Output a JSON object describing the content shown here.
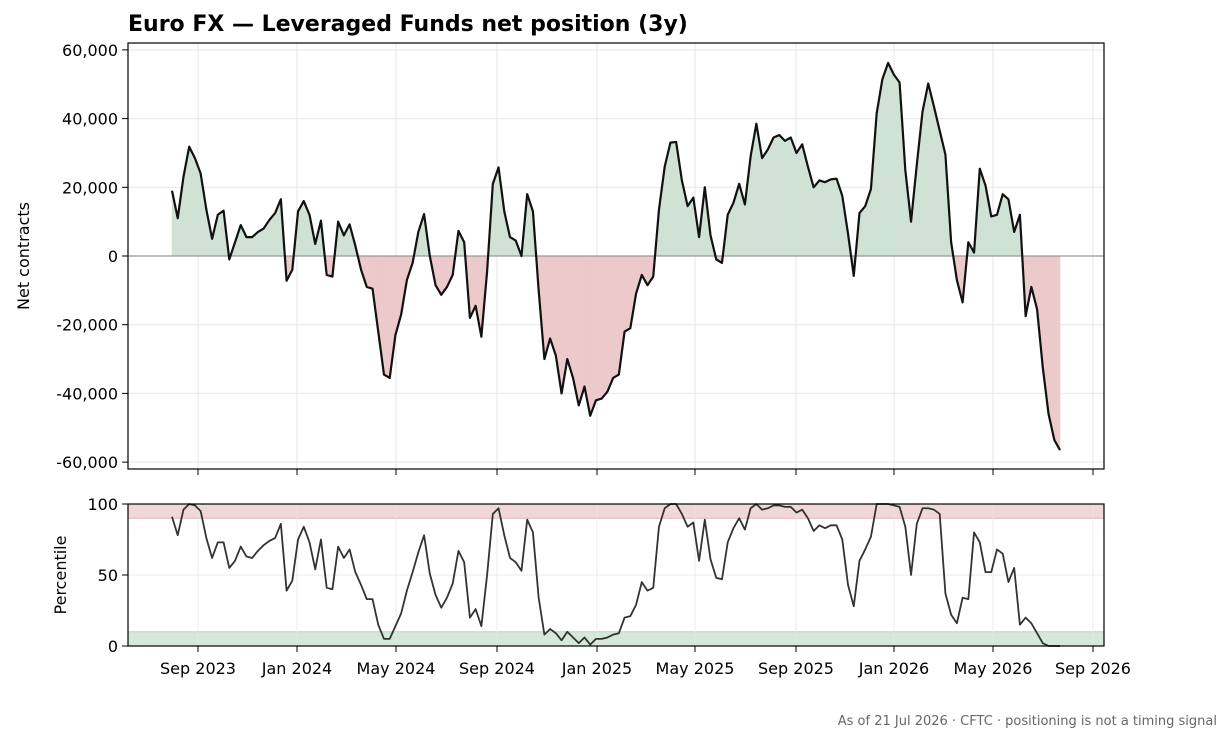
{
  "chart_data": [
    {
      "type": "area",
      "title": "Euro FX — Leveraged Funds net position (3y)",
      "ylabel": "Net contracts",
      "ylim": [
        -62000,
        62000
      ],
      "yticks": [
        -60000,
        -40000,
        -20000,
        0,
        20000,
        40000,
        60000
      ],
      "ytick_labels": [
        "-60,000",
        "-40,000",
        "-20,000",
        "0",
        "20,000",
        "40,000",
        "60,000"
      ],
      "grid": true,
      "colors": {
        "positive_fill": "#cfe2d5",
        "negative_fill": "#ecc9cb",
        "line": "#111111",
        "zero_line": "#999999"
      },
      "series": [
        {
          "values": [
            19000,
            11000,
            23000,
            31800,
            28500,
            24000,
            13500,
            5000,
            12000,
            13200,
            -1000,
            4000,
            9000,
            5500,
            5500,
            7000,
            8000,
            10500,
            12500,
            16500,
            -7200,
            -4000,
            13000,
            16000,
            12000,
            3500,
            10300,
            -5500,
            -6000,
            10000,
            6000,
            9200,
            3000,
            -4000,
            -9000,
            -9500,
            -22000,
            -34500,
            -35500,
            -23000,
            -17000,
            -7000,
            -2000,
            7000,
            12200,
            0,
            -8500,
            -11300,
            -9000,
            -5500,
            7300,
            4000,
            -18000,
            -14500,
            -23500,
            -4500,
            21000,
            25800,
            13000,
            5500,
            4500,
            0,
            18000,
            13000,
            -10000,
            -30000,
            -24000,
            -29000,
            -40000,
            -30000,
            -35500,
            -43500,
            -38000,
            -46500,
            -42000,
            -41500,
            -39500,
            -35500,
            -34500,
            -22000,
            -21000,
            -11000,
            -5500,
            -8500,
            -6000,
            13500,
            26000,
            33000,
            33200,
            22000,
            14500,
            17000,
            5500,
            20000,
            6000,
            -1000,
            -2000,
            12000,
            15500,
            21000,
            15000,
            29000,
            38500,
            28500,
            31000,
            34500,
            35200,
            33500,
            34500,
            30000,
            32500,
            26000,
            20000,
            22000,
            21500,
            22300,
            22500,
            17500,
            6500,
            -5800,
            12500,
            14500,
            19500,
            41500,
            51500,
            56200,
            52800,
            50500,
            25000,
            10000,
            26500,
            42000,
            50200,
            43500,
            36500,
            29500,
            4000,
            -7000,
            -13500,
            4000,
            1000,
            25400,
            20500,
            11500,
            12000,
            18000,
            16500,
            7000,
            12000,
            -17500,
            -9000,
            -15500,
            -32500,
            -46000,
            -53500,
            -56500
          ]
        }
      ]
    },
    {
      "type": "line",
      "ylabel": "Percentile",
      "ylim": [
        0,
        100
      ],
      "yticks": [
        0,
        50,
        100
      ],
      "ytick_labels": [
        "0",
        "50",
        "100"
      ],
      "bands": [
        {
          "from": 90,
          "to": 100,
          "color": "#f0d8da"
        },
        {
          "from": 0,
          "to": 10,
          "color": "#d5e8db"
        }
      ],
      "grid": true,
      "colors": {
        "line": "#333333"
      },
      "series": [
        {
          "values": [
            91,
            78,
            96,
            100,
            99,
            95,
            76,
            62,
            73,
            73,
            55,
            60,
            70,
            63,
            62,
            67,
            71,
            74,
            76,
            86,
            39,
            46,
            75,
            84,
            73,
            54,
            75,
            41,
            40,
            70,
            62,
            68,
            52,
            43,
            33,
            33,
            15,
            5,
            5,
            14,
            23,
            39,
            52,
            66,
            78,
            51,
            36,
            27,
            34,
            44,
            67,
            59,
            20,
            26,
            14,
            50,
            93,
            97,
            78,
            62,
            59,
            53,
            89,
            80,
            34,
            8,
            12,
            9,
            4,
            10,
            6,
            2,
            6,
            1,
            5,
            5,
            6,
            8,
            9,
            20,
            21,
            29,
            45,
            39,
            41,
            84,
            97,
            100,
            100,
            93,
            84,
            87,
            60,
            89,
            61,
            48,
            47,
            73,
            83,
            90,
            82,
            97,
            100,
            96,
            97,
            99,
            99,
            98,
            98,
            94,
            96,
            90,
            81,
            85,
            83,
            85,
            85,
            75,
            43,
            28,
            60,
            68,
            77,
            100,
            100,
            100,
            99,
            98,
            84,
            50,
            86,
            97,
            97,
            96,
            93,
            37,
            22,
            16,
            34,
            33,
            80,
            73,
            52,
            52,
            68,
            65,
            45,
            55,
            15,
            20,
            16,
            9,
            2,
            0,
            0,
            0
          ]
        }
      ]
    }
  ],
  "x_axis": {
    "ticks": [
      "Sep 2023",
      "Jan 2024",
      "May 2024",
      "Sep 2024",
      "Jan 2025",
      "May 2025",
      "Sep 2025",
      "Jan 2026",
      "May 2026",
      "Sep 2026"
    ]
  },
  "footnote": "As of 21 Jul 2026 · CFTC · positioning is not a timing signal"
}
